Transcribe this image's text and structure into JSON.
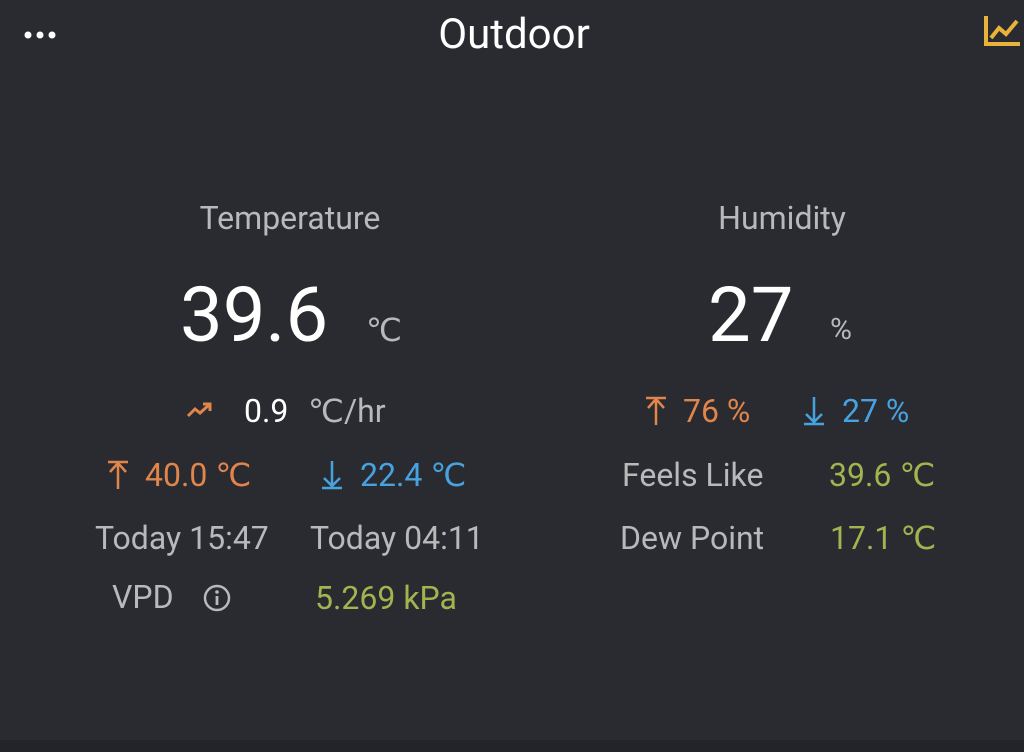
{
  "header": {
    "title": "Outdoor"
  },
  "temperature": {
    "label": "Temperature",
    "value": "39.6",
    "unit": "℃",
    "rate": {
      "value": "0.9",
      "unit": "℃/hr"
    },
    "high": "40.0 ℃",
    "low": "22.4 ℃",
    "high_time": "Today 15:47",
    "low_time": "Today 04:11",
    "vpd": {
      "label": "VPD",
      "value": "5.269 kPa"
    }
  },
  "humidity": {
    "label": "Humidity",
    "value": "27",
    "unit": "%",
    "high": "76 %",
    "low": "27 %",
    "feels_like": {
      "label": "Feels Like",
      "value": "39.6 ℃"
    },
    "dew_point": {
      "label": "Dew Point",
      "value": "17.1 ℃"
    }
  }
}
